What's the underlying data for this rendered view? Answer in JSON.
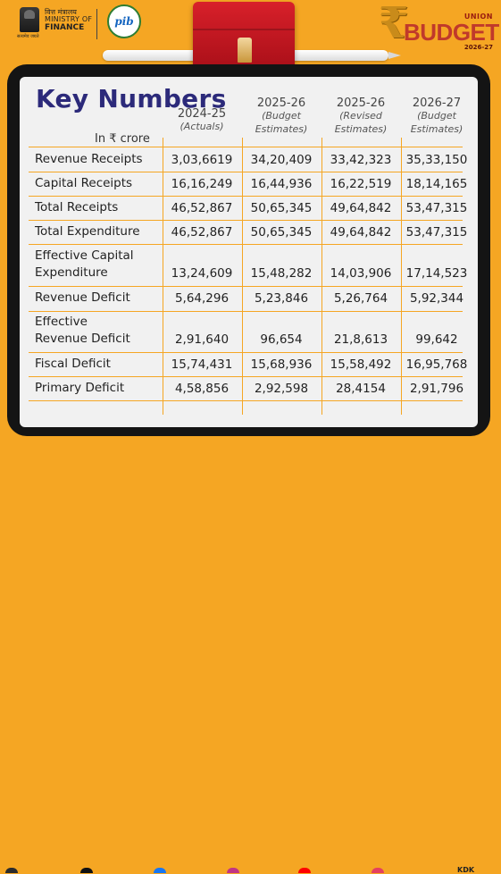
{
  "header": {
    "ministry_hindi": "वित्त मंत्रालय",
    "ministry_line1": "MINISTRY OF",
    "ministry_line2": "FINANCE",
    "emblem_caption": "सत्यमेव जयते",
    "pib_logo_text": "pib",
    "brand_union": "UNION",
    "brand_budget": "BUDGET",
    "brand_year": "2026-27",
    "rupee_symbol": "₹"
  },
  "table": {
    "title": "Key Numbers",
    "unit_label": "In ₹ crore",
    "columns": [
      {
        "year": "2024-25",
        "sub1": "(Actuals)",
        "sub2": ""
      },
      {
        "year": "2025-26",
        "sub1": "(Budget",
        "sub2": "Estimates)"
      },
      {
        "year": "2025-26",
        "sub1": "(Revised",
        "sub2": "Estimates)"
      },
      {
        "year": "2026-27",
        "sub1": "(Budget",
        "sub2": "Estimates)"
      }
    ],
    "rows": [
      {
        "label1": "Revenue Receipts",
        "label2": "",
        "values": [
          "3,03,6619",
          "34,20,409",
          "33,42,323",
          "35,33,150"
        ]
      },
      {
        "label1": "Capital Receipts",
        "label2": "",
        "values": [
          "16,16,249",
          "16,44,936",
          "16,22,519",
          "18,14,165"
        ]
      },
      {
        "label1": "Total Receipts",
        "label2": "",
        "values": [
          "46,52,867",
          "50,65,345",
          "49,64,842",
          "53,47,315"
        ]
      },
      {
        "label1": "Total Expenditure",
        "label2": "",
        "values": [
          "46,52,867",
          "50,65,345",
          "49,64,842",
          "53,47,315"
        ]
      },
      {
        "label1": "Effective Capital",
        "label2": "Expenditure",
        "values": [
          "13,24,609",
          "15,48,282",
          "14,03,906",
          "17,14,523"
        ]
      },
      {
        "label1": "Revenue Deficit",
        "label2": "",
        "values": [
          "5,64,296",
          "5,23,846",
          "5,26,764",
          "5,92,344"
        ]
      },
      {
        "label1": "Effective",
        "label2": "Revenue Deficit",
        "values": [
          "2,91,640",
          "96,654",
          "21,8,613",
          "99,642"
        ]
      },
      {
        "label1": "Fiscal Deficit",
        "label2": "",
        "values": [
          "15,74,431",
          "15,68,936",
          "15,58,492",
          "16,95,768"
        ]
      },
      {
        "label1": "Primary Deficit",
        "label2": "",
        "values": [
          "4,58,856",
          "2,92,598",
          "28,4154",
          "2,91,796"
        ]
      }
    ]
  },
  "footer": {
    "signature": "KDK"
  },
  "colors": {
    "background": "#f5a623",
    "title": "#2c2a7a",
    "grid_lines": "#f5a623",
    "briefcase": "#c8161f"
  }
}
